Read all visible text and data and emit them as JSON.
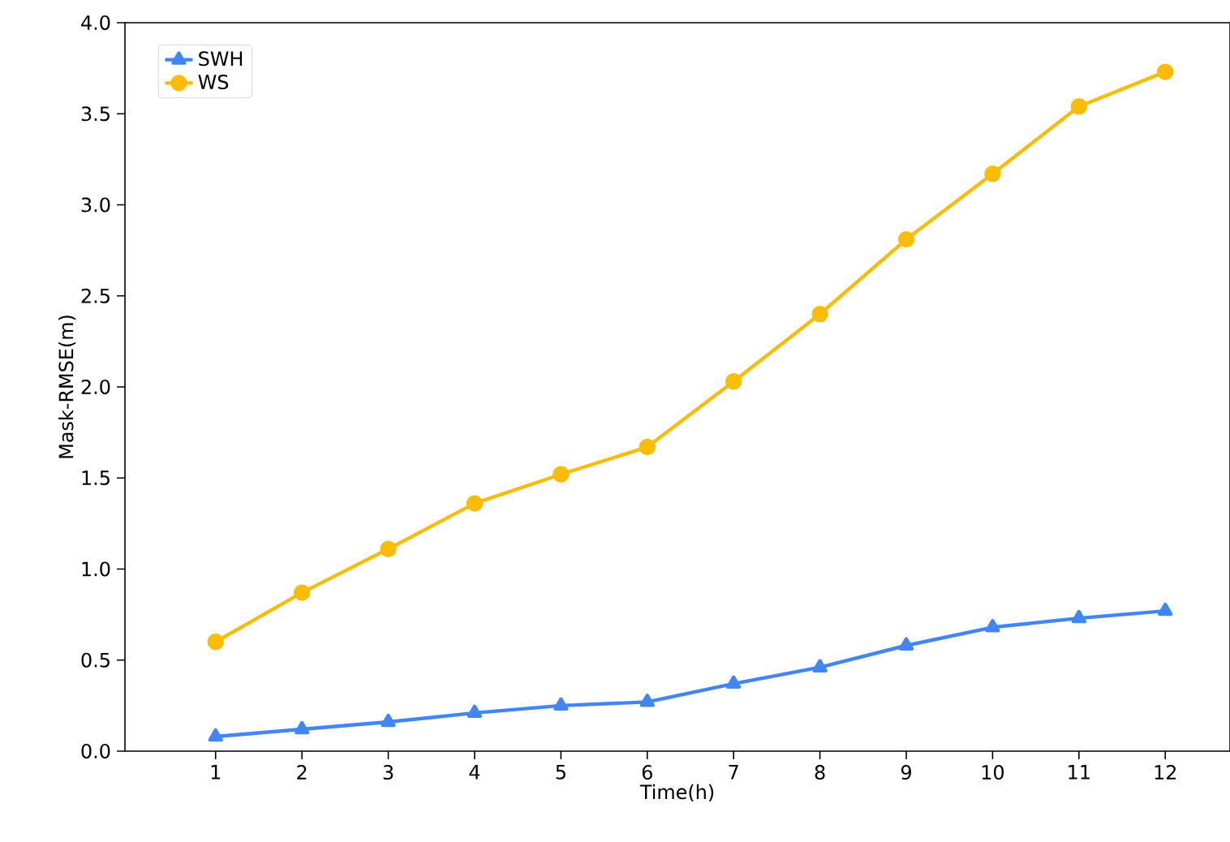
{
  "chart_data": {
    "type": "line",
    "xlabel": "Time(h)",
    "ylabel": "Mask-RMSE(m)",
    "x": [
      1,
      2,
      3,
      4,
      5,
      6,
      7,
      8,
      9,
      10,
      11,
      12
    ],
    "series": [
      {
        "name": "SWH",
        "color": "#4285f4",
        "marker": "triangle",
        "values": [
          0.08,
          0.12,
          0.16,
          0.21,
          0.25,
          0.27,
          0.37,
          0.46,
          0.58,
          0.68,
          0.73,
          0.77
        ]
      },
      {
        "name": "WS",
        "color": "#fbbc05",
        "marker": "circle",
        "values": [
          0.6,
          0.87,
          1.11,
          1.36,
          1.52,
          1.67,
          2.03,
          2.4,
          2.81,
          3.17,
          3.54,
          3.73
        ]
      }
    ],
    "xlim": [
      -0.05,
      12.75
    ],
    "ylim": [
      0,
      4.0
    ],
    "xticks": [
      1,
      2,
      3,
      4,
      5,
      6,
      7,
      8,
      9,
      10,
      11,
      12
    ],
    "yticks": [
      {
        "value": 0,
        "label": "0.0"
      },
      {
        "value": 0.5,
        "label": "0.5"
      },
      {
        "value": 1.0,
        "label": "1.0"
      },
      {
        "value": 1.5,
        "label": "1.5"
      },
      {
        "value": 2.0,
        "label": "2.0"
      },
      {
        "value": 2.5,
        "label": "2.5"
      },
      {
        "value": 3.0,
        "label": "3.0"
      },
      {
        "value": 3.5,
        "label": "3.5"
      },
      {
        "value": 4.0,
        "label": "4.0"
      }
    ],
    "grid": false,
    "legend": "top left",
    "line_style": "solid"
  }
}
